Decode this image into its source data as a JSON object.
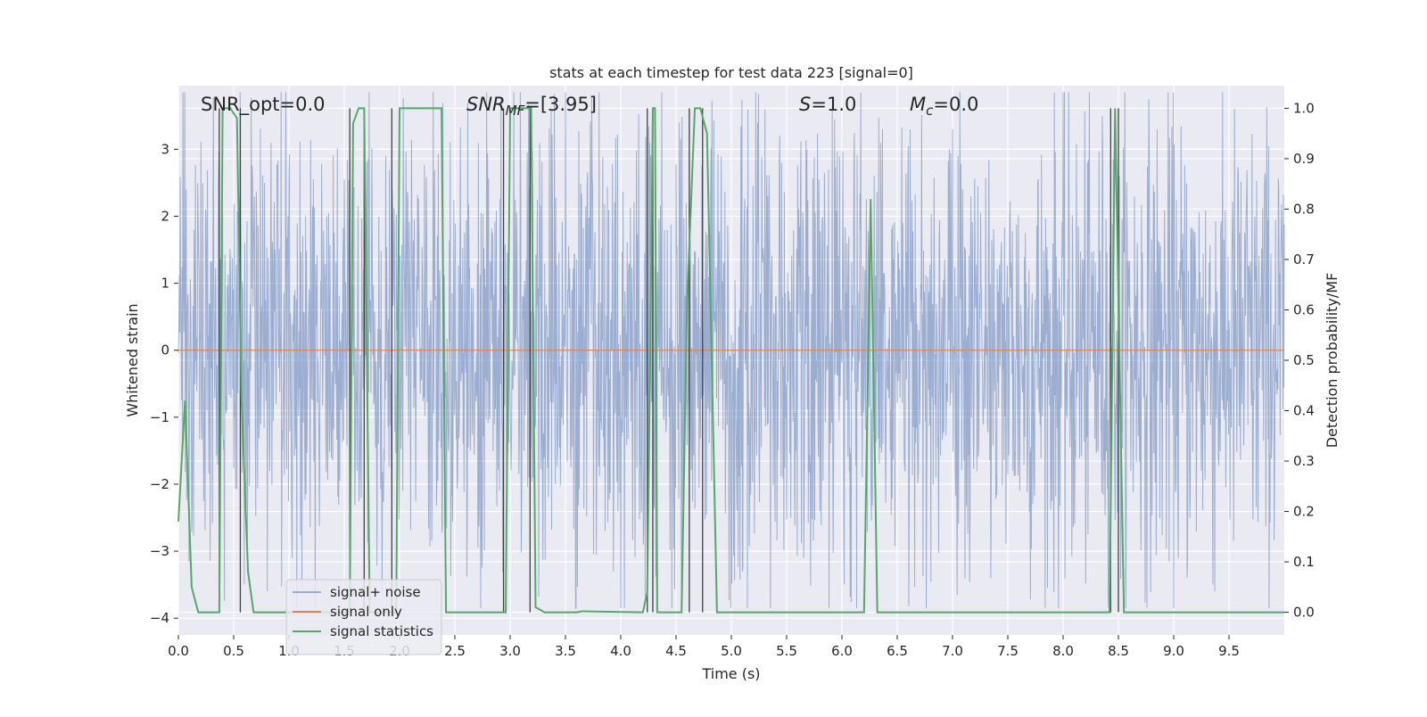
{
  "chart_data": {
    "type": "line",
    "title": "stats at each timestep for test data 223 [signal=0]",
    "xlabel": "Time (s)",
    "ylabel": "Whitened strain",
    "y2label": "Detection probability/MF",
    "xlim": [
      0.0,
      10.0
    ],
    "ylim": [
      -4.25,
      3.95
    ],
    "y2lim": [
      -0.045,
      1.045
    ],
    "xticks": [
      "0.0",
      "0.5",
      "1.0",
      "1.5",
      "2.0",
      "2.5",
      "3.0",
      "3.5",
      "4.0",
      "4.5",
      "5.0",
      "5.5",
      "6.0",
      "6.5",
      "7.0",
      "7.5",
      "8.0",
      "8.5",
      "9.0",
      "9.5"
    ],
    "yticks": [
      "3",
      "2",
      "1",
      "0",
      "−1",
      "−2",
      "−3",
      "−4"
    ],
    "y2ticks": [
      "1.0",
      "0.9",
      "0.8",
      "0.7",
      "0.6",
      "0.5",
      "0.4",
      "0.3",
      "0.2",
      "0.1",
      "0.0"
    ],
    "grid": true,
    "legend_position": "lower-left",
    "annotations": [
      {
        "text": "SNR_opt=0.0"
      },
      {
        "text_main": "SNR",
        "text_sub": "MF",
        "text_rest": "=[3.95]"
      },
      {
        "text_main": "S",
        "text_rest": "=1.0"
      },
      {
        "text_main": "M",
        "text_sub": "c",
        "text_rest": "=0.0"
      }
    ],
    "series": [
      {
        "name": "signal+ noise",
        "color": "#4c72b0",
        "axis": "left",
        "description_values": {
          "x_start": 0.0,
          "x_end": 10.0,
          "typical_amplitude": 1.8,
          "max_abs": 3.85
        }
      },
      {
        "name": "signal only",
        "color": "#dd8452",
        "axis": "left",
        "x": [
          0.0,
          10.0
        ],
        "y": [
          0.0,
          0.0
        ]
      },
      {
        "name": "signal statistics",
        "color": "#55a868",
        "axis": "right",
        "x": [
          0.0,
          0.06,
          0.12,
          0.18,
          0.37,
          0.4,
          0.44,
          0.47,
          0.53,
          0.57,
          0.63,
          0.68,
          1.55,
          1.58,
          1.63,
          1.68,
          1.73,
          1.93,
          1.97,
          2.0,
          2.05,
          2.38,
          2.42,
          2.96,
          3.0,
          3.19,
          3.23,
          3.31,
          3.6,
          3.65,
          4.2,
          4.24,
          4.27,
          4.29,
          4.31,
          4.33,
          4.35,
          4.55,
          4.6,
          4.67,
          4.72,
          4.78,
          4.87,
          6.2,
          6.26,
          6.32,
          8.42,
          8.47,
          8.55,
          10.0
        ],
        "y": [
          0.18,
          0.42,
          0.05,
          0.0,
          0.0,
          1.0,
          1.0,
          1.0,
          0.98,
          0.43,
          0.08,
          0.0,
          0.0,
          0.97,
          1.0,
          1.0,
          0.0,
          0.0,
          0.0,
          1.0,
          1.0,
          1.0,
          0.0,
          0.0,
          1.0,
          1.0,
          0.01,
          0.0,
          0.0,
          0.002,
          0.0,
          0.04,
          0.58,
          1.0,
          1.0,
          0.0,
          0.0,
          0.0,
          0.62,
          1.0,
          1.0,
          0.95,
          0.0,
          0.0,
          0.82,
          0.0,
          0.0,
          1.0,
          0.0,
          0.0
        ]
      }
    ],
    "vertical_markers": {
      "color": "#404040",
      "x": [
        0.37,
        0.56,
        1.55,
        1.68,
        1.93,
        2.94,
        3.18,
        4.24,
        4.29,
        4.62,
        4.74,
        8.43,
        8.5
      ]
    }
  },
  "legend": {
    "items": [
      "signal+ noise",
      "signal only",
      "signal statistics"
    ]
  }
}
